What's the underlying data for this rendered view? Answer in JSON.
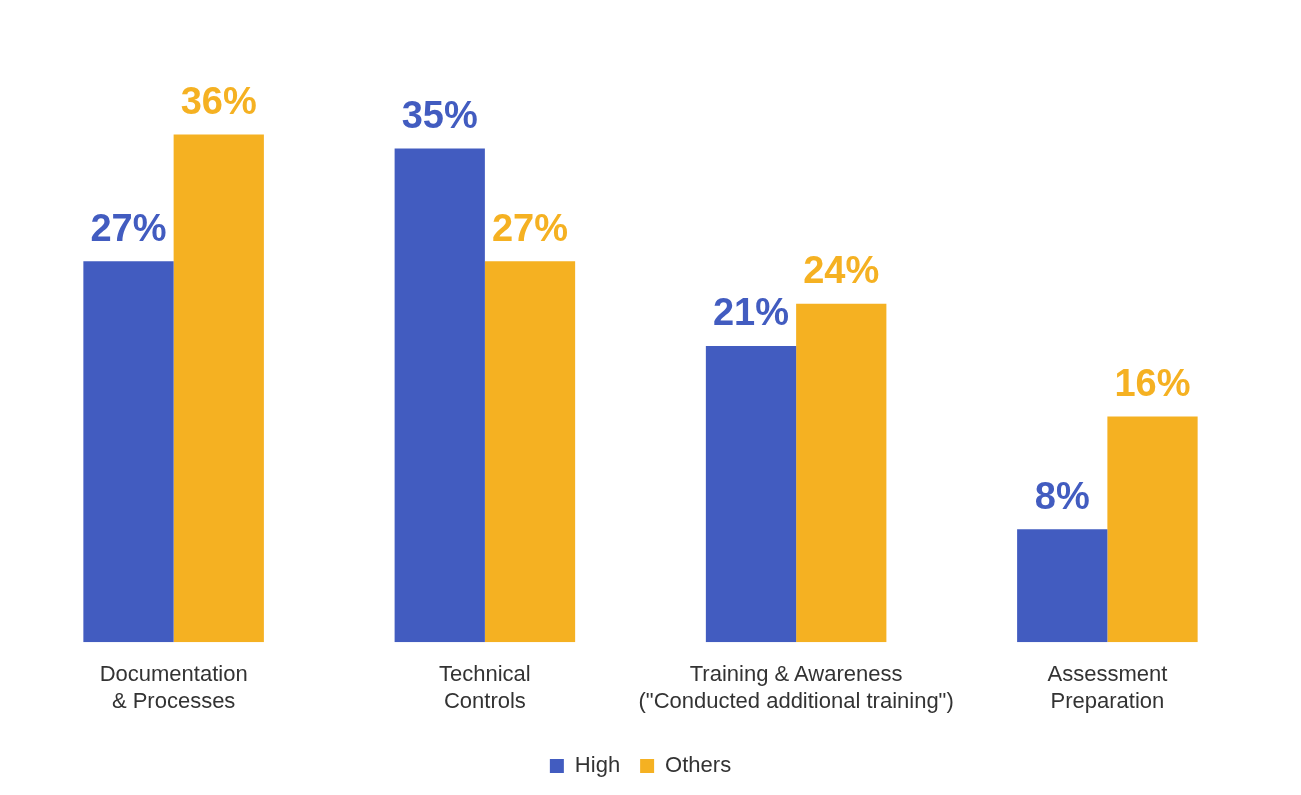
{
  "chart_data": {
    "type": "bar",
    "categories": [
      "Documentation\n& Processes",
      "Technical\nControls",
      "Training & Awareness\n(\"Conducted additional training\")",
      "Assessment\nPreparation"
    ],
    "series": [
      {
        "name": "High",
        "color": "#425cc0",
        "values": [
          27,
          35,
          21,
          8
        ],
        "value_labels": [
          "27%",
          "35%",
          "21%",
          "8%"
        ]
      },
      {
        "name": "Others",
        "color": "#f5b122",
        "values": [
          36,
          27,
          24,
          16
        ],
        "value_labels": [
          "36%",
          "27%",
          "24%",
          "16%"
        ]
      }
    ],
    "legend": "bottom"
  }
}
